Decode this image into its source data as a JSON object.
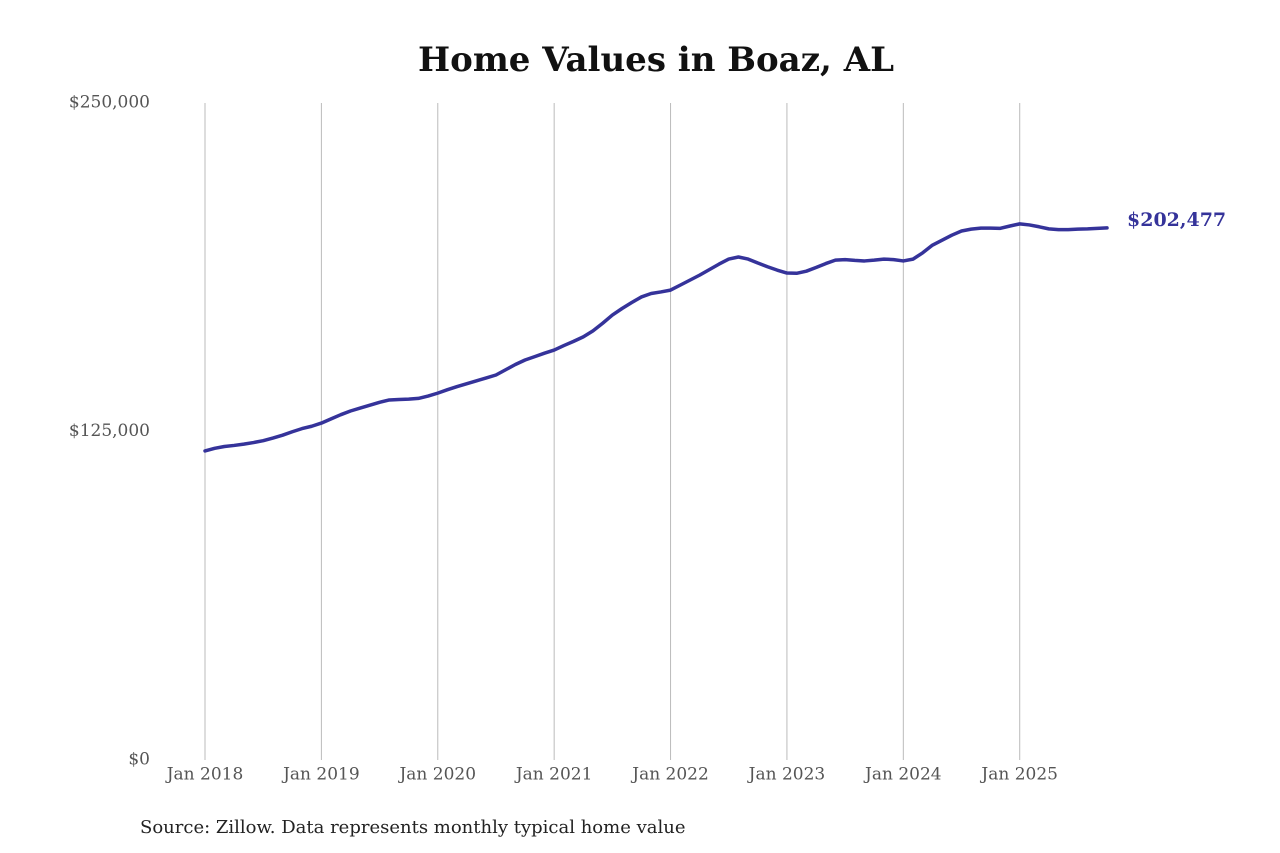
{
  "chart_data": {
    "type": "line",
    "title": "Home Values in Boaz, AL",
    "source": "Source: Zillow. Data represents monthly typical home value",
    "x": [
      "2018-01",
      "2018-02",
      "2018-03",
      "2018-04",
      "2018-05",
      "2018-06",
      "2018-07",
      "2018-08",
      "2018-09",
      "2018-10",
      "2018-11",
      "2018-12",
      "2019-01",
      "2019-02",
      "2019-03",
      "2019-04",
      "2019-05",
      "2019-06",
      "2019-07",
      "2019-08",
      "2019-09",
      "2019-10",
      "2019-11",
      "2019-12",
      "2020-01",
      "2020-02",
      "2020-03",
      "2020-04",
      "2020-05",
      "2020-06",
      "2020-07",
      "2020-08",
      "2020-09",
      "2020-10",
      "2020-11",
      "2020-12",
      "2021-01",
      "2021-02",
      "2021-03",
      "2021-04",
      "2021-05",
      "2021-06",
      "2021-07",
      "2021-08",
      "2021-09",
      "2021-10",
      "2021-11",
      "2021-12",
      "2022-01",
      "2022-02",
      "2022-03",
      "2022-04",
      "2022-05",
      "2022-06",
      "2022-07",
      "2022-08",
      "2022-09",
      "2022-10",
      "2022-11",
      "2022-12",
      "2023-01",
      "2023-02",
      "2023-03",
      "2023-04",
      "2023-05",
      "2023-06",
      "2023-07",
      "2023-08",
      "2023-09",
      "2023-10",
      "2023-11",
      "2023-12",
      "2024-01",
      "2024-02",
      "2024-03",
      "2024-04",
      "2024-05",
      "2024-06",
      "2024-07",
      "2024-08",
      "2024-09",
      "2024-10",
      "2024-11",
      "2024-12",
      "2025-01",
      "2025-02",
      "2025-03",
      "2025-04",
      "2025-05",
      "2025-06",
      "2025-07",
      "2025-08",
      "2025-09",
      "2025-10"
    ],
    "series": [
      {
        "color": "#35339a",
        "values": [
          117600,
          118600,
          119300,
          119700,
          120200,
          120800,
          121500,
          122500,
          123600,
          124900,
          126100,
          127000,
          128200,
          129800,
          131400,
          132800,
          133900,
          135000,
          136100,
          137000,
          137200,
          137300,
          137600,
          138500,
          139600,
          140900,
          142100,
          143200,
          144300,
          145400,
          146500,
          148500,
          150500,
          152200,
          153500,
          154800,
          156000,
          157700,
          159300,
          161000,
          163300,
          166200,
          169300,
          171800,
          174100,
          176200,
          177500,
          178100,
          178800,
          180700,
          182600,
          184500,
          186600,
          188700,
          190600,
          191400,
          190600,
          189100,
          187700,
          186400,
          185300,
          185200,
          186000,
          187400,
          188900,
          190200,
          190400,
          190100,
          189900,
          190200,
          190600,
          190400,
          189900,
          190600,
          193000,
          195900,
          197800,
          199700,
          201300,
          202000,
          202400,
          202400,
          202300,
          203200,
          204000,
          203600,
          202900,
          202100,
          201800,
          201800,
          202000,
          202100,
          202300,
          202477
        ],
        "value_labels": [
          null,
          null,
          null,
          null,
          null,
          null,
          null,
          null,
          null,
          null,
          null,
          null,
          null,
          null,
          null,
          null,
          null,
          null,
          null,
          null,
          null,
          null,
          null,
          null,
          null,
          null,
          null,
          null,
          null,
          null,
          null,
          null,
          null,
          null,
          null,
          null,
          null,
          null,
          null,
          null,
          null,
          null,
          null,
          null,
          null,
          null,
          null,
          null,
          null,
          null,
          null,
          null,
          null,
          null,
          null,
          null,
          null,
          null,
          null,
          null,
          null,
          null,
          null,
          null,
          null,
          null,
          null,
          null,
          null,
          null,
          null,
          null,
          null,
          null,
          null,
          null,
          null,
          null,
          null,
          null,
          null,
          null,
          null,
          null,
          null,
          null,
          null,
          null,
          null,
          null,
          null,
          null,
          null,
          "$202,477"
        ]
      }
    ],
    "xlim": [
      "2018-01",
      "2025-10"
    ],
    "xticks": [
      {
        "value": "2018-01",
        "label": "Jan 2018"
      },
      {
        "value": "2019-01",
        "label": "Jan 2019"
      },
      {
        "value": "2020-01",
        "label": "Jan 2020"
      },
      {
        "value": "2021-01",
        "label": "Jan 2021"
      },
      {
        "value": "2022-01",
        "label": "Jan 2022"
      },
      {
        "value": "2023-01",
        "label": "Jan 2023"
      },
      {
        "value": "2024-01",
        "label": "Jan 2024"
      },
      {
        "value": "2025-01",
        "label": "Jan 2025"
      }
    ],
    "ylim": [
      0,
      250000
    ],
    "yticks": [
      {
        "value": 0,
        "label": "$0"
      },
      {
        "value": 125000,
        "label": "$125,000"
      },
      {
        "value": 250000,
        "label": "$250,000"
      }
    ],
    "grid": true
  }
}
